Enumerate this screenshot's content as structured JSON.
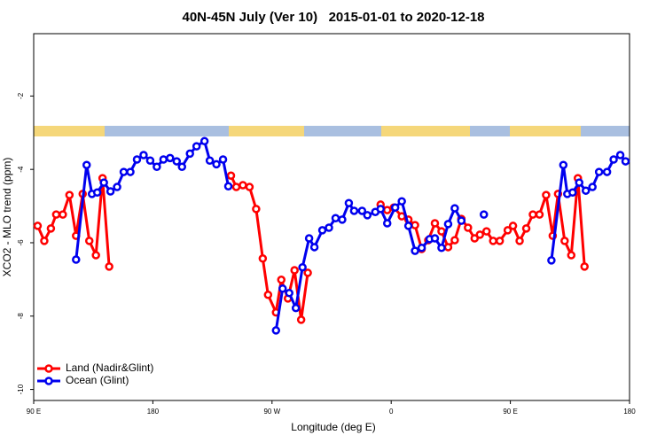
{
  "chart_data": {
    "type": "line",
    "title": "40N-45N July (Ver 10)   2015-01-01 to 2020-12-18",
    "x_label": "Longitude (deg E)",
    "y_label": "XCO2 - MLO trend (ppm)",
    "xlim": [
      90,
      540
    ],
    "ylim": [
      -10.3,
      -0.3
    ],
    "xticks": [
      {
        "value": 90,
        "label": "90 E"
      },
      {
        "value": 180,
        "label": "180"
      },
      {
        "value": 270,
        "label": "90 W"
      },
      {
        "value": 360,
        "label": "0"
      },
      {
        "value": 450,
        "label": "90 E"
      },
      {
        "value": 540,
        "label": "180"
      }
    ],
    "yticks": [
      -2,
      -4,
      -6,
      -8,
      -10
    ],
    "legend": "lower left",
    "series": [
      {
        "name": "Land (Nadir&Glint)",
        "color": "#ff0000",
        "x": [
          93,
          98,
          103,
          107,
          112,
          117,
          122,
          127,
          132,
          137,
          142,
          147,
          150,
          239,
          243,
          248,
          253,
          258,
          263,
          267,
          273,
          277,
          282,
          287,
          292,
          297,
          300,
          352,
          357,
          362,
          368,
          373,
          378,
          383,
          388,
          393,
          398,
          403,
          408,
          413,
          418,
          423,
          427,
          432,
          437,
          442,
          448,
          452,
          457,
          462,
          467,
          472,
          477,
          482,
          486,
          491,
          496,
          501,
          506
        ],
        "values": [
          -5.54,
          -5.95,
          -5.61,
          -5.23,
          -5.23,
          -4.7,
          -5.81,
          -4.67,
          -5.95,
          -6.34,
          -4.24,
          -6.65,
          null,
          -4.17,
          -4.48,
          -4.43,
          -4.48,
          -5.08,
          -6.43,
          -7.42,
          -7.9,
          -7.01,
          -7.52,
          -6.75,
          -8.1,
          -6.82,
          null,
          -4.96,
          -5.11,
          -5.04,
          -5.28,
          -5.37,
          -5.52,
          -6.17,
          -5.93,
          -5.47,
          -5.69,
          -6.12,
          -5.93,
          -5.35,
          -5.59,
          -5.88,
          -5.78,
          -5.69,
          -5.95,
          -5.95,
          -5.66,
          -5.54,
          -5.95,
          -5.61,
          -5.23,
          -5.23,
          -4.7,
          -5.81,
          -4.67,
          -5.95,
          -6.34,
          -4.24,
          -6.65
        ]
      },
      {
        "name": "Ocean (Glint)",
        "color": "#0000ee",
        "x": [
          122,
          130,
          134,
          138,
          143,
          148,
          153,
          158,
          163,
          168,
          173,
          178,
          183,
          188,
          193,
          198,
          202,
          208,
          213,
          219,
          223,
          228,
          233,
          237,
          250,
          273,
          278,
          283,
          288,
          293,
          298,
          302,
          308,
          313,
          318,
          323,
          328,
          332,
          338,
          342,
          348,
          352,
          357,
          363,
          368,
          373,
          378,
          383,
          389,
          393,
          398,
          403,
          408,
          413,
          415,
          430,
          440,
          481,
          490,
          493,
          497,
          502,
          507,
          512,
          517,
          523,
          528,
          533,
          537
        ],
        "values": [
          -6.46,
          -3.88,
          -4.67,
          -4.63,
          -4.36,
          -4.6,
          -4.48,
          -4.07,
          -4.07,
          -3.73,
          -3.61,
          -3.76,
          -3.93,
          -3.73,
          -3.69,
          -3.78,
          -3.93,
          -3.57,
          -3.37,
          -3.23,
          -3.76,
          -3.86,
          -3.73,
          -4.46,
          null,
          -8.39,
          -7.25,
          -7.37,
          -7.78,
          -6.67,
          -5.88,
          -6.12,
          -5.66,
          -5.59,
          -5.33,
          -5.37,
          -4.92,
          -5.13,
          -5.13,
          -5.25,
          -5.16,
          -5.08,
          -5.47,
          -5.04,
          -4.87,
          -5.54,
          -6.22,
          -6.14,
          -5.9,
          -5.88,
          -6.14,
          -5.49,
          -5.06,
          -5.4,
          null,
          -5.23,
          null,
          -6.48,
          -3.88,
          -4.67,
          -4.63,
          -4.36,
          -4.58,
          -4.48,
          -4.07,
          -4.07,
          -3.73,
          -3.61,
          -3.78
        ]
      }
    ]
  }
}
